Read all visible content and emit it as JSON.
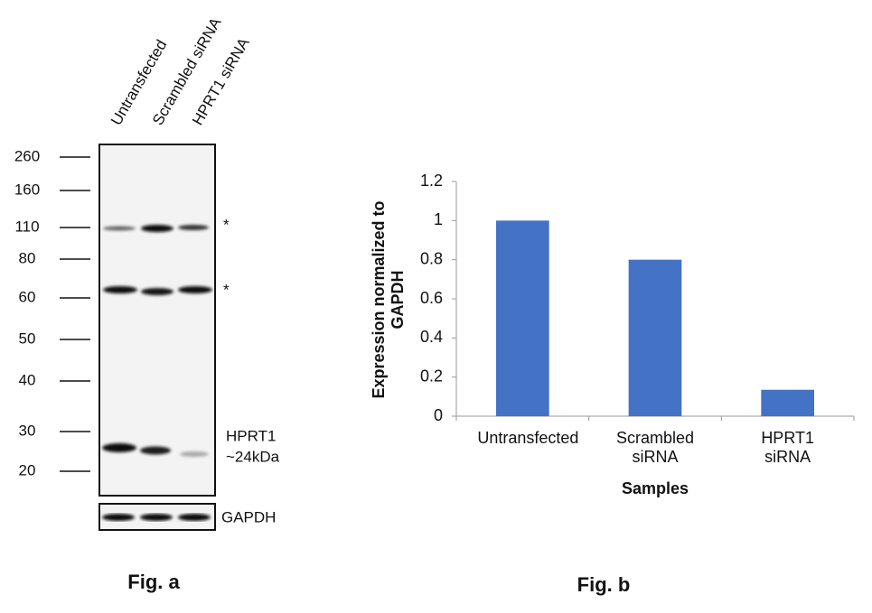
{
  "blot": {
    "lanes": [
      "Untransfected",
      "Scrambled siRNA",
      "HPRT1 siRNA"
    ],
    "markers": [
      "260",
      "160",
      "110",
      "80",
      "60",
      "50",
      "40",
      "30",
      "20"
    ],
    "annotations": [
      "*",
      "*"
    ],
    "band_label": [
      "HPRT1",
      "~24kDa"
    ],
    "loading_control": "GAPDH",
    "caption": "Fig. a"
  },
  "chart_data": {
    "type": "bar",
    "categories": [
      "Untransfected",
      "Scrambled siRNA",
      "HPRT1 siRNA"
    ],
    "values": [
      1,
      0.8,
      0.135
    ],
    "color": "#4472c4",
    "ylim": [
      0,
      1.2
    ],
    "yticks": [
      0,
      0.2,
      0.4,
      0.6,
      0.8,
      1,
      1.2
    ],
    "ylabel": "Expression normalized to GAPDH",
    "xlabel": "Samples",
    "caption": "Fig. b"
  }
}
